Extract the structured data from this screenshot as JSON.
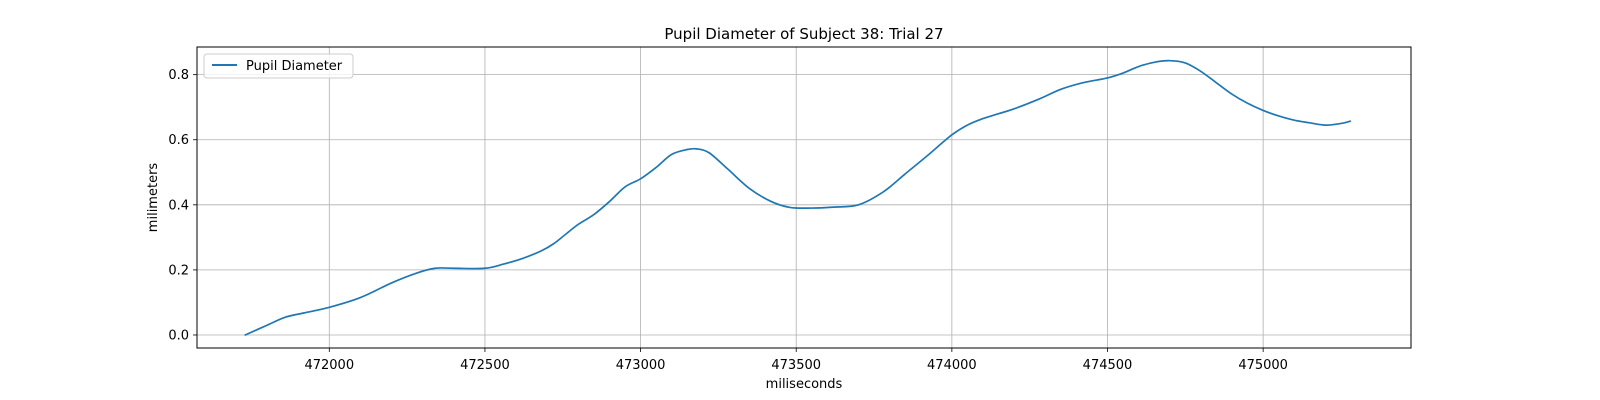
{
  "chart_data": {
    "type": "line",
    "title": "Pupil Diameter of Subject 38: Trial 27",
    "xlabel": "miliseconds",
    "ylabel": "milimeters",
    "xlim": [
      471575,
      475475
    ],
    "ylim": [
      -0.04,
      0.885
    ],
    "xticks": [
      472000,
      472500,
      473000,
      473500,
      474000,
      474500,
      475000
    ],
    "yticks": [
      0.0,
      0.2,
      0.4,
      0.6,
      0.8
    ],
    "ytick_labels": [
      "0.0",
      "0.2",
      "0.4",
      "0.6",
      "0.8"
    ],
    "grid": true,
    "legend_position": "upper-left",
    "series": [
      {
        "name": "Pupil Diameter",
        "color": "#1f77b4",
        "x": [
          471730,
          471800,
          471860,
          471920,
          472000,
          472100,
          472200,
          472280,
          472340,
          472400,
          472500,
          472560,
          472620,
          472680,
          472720,
          472760,
          472800,
          472850,
          472900,
          472950,
          473000,
          473050,
          473100,
          473150,
          473180,
          473220,
          473280,
          473350,
          473420,
          473480,
          473550,
          473620,
          473700,
          473780,
          473850,
          473920,
          474000,
          474050,
          474100,
          474150,
          474200,
          474280,
          474350,
          474420,
          474500,
          474550,
          474600,
          474650,
          474700,
          474750,
          474800,
          474850,
          474900,
          474950,
          475000,
          475050,
          475100,
          475150,
          475200,
          475250,
          475280
        ],
        "y": [
          0.0,
          0.03,
          0.055,
          0.068,
          0.085,
          0.115,
          0.16,
          0.19,
          0.205,
          0.205,
          0.205,
          0.218,
          0.235,
          0.258,
          0.28,
          0.31,
          0.34,
          0.37,
          0.41,
          0.455,
          0.48,
          0.515,
          0.555,
          0.57,
          0.572,
          0.56,
          0.51,
          0.45,
          0.41,
          0.392,
          0.39,
          0.393,
          0.4,
          0.44,
          0.495,
          0.55,
          0.615,
          0.645,
          0.665,
          0.68,
          0.695,
          0.725,
          0.755,
          0.775,
          0.79,
          0.805,
          0.825,
          0.838,
          0.843,
          0.836,
          0.81,
          0.775,
          0.74,
          0.712,
          0.69,
          0.673,
          0.66,
          0.652,
          0.645,
          0.65,
          0.657
        ]
      }
    ]
  }
}
